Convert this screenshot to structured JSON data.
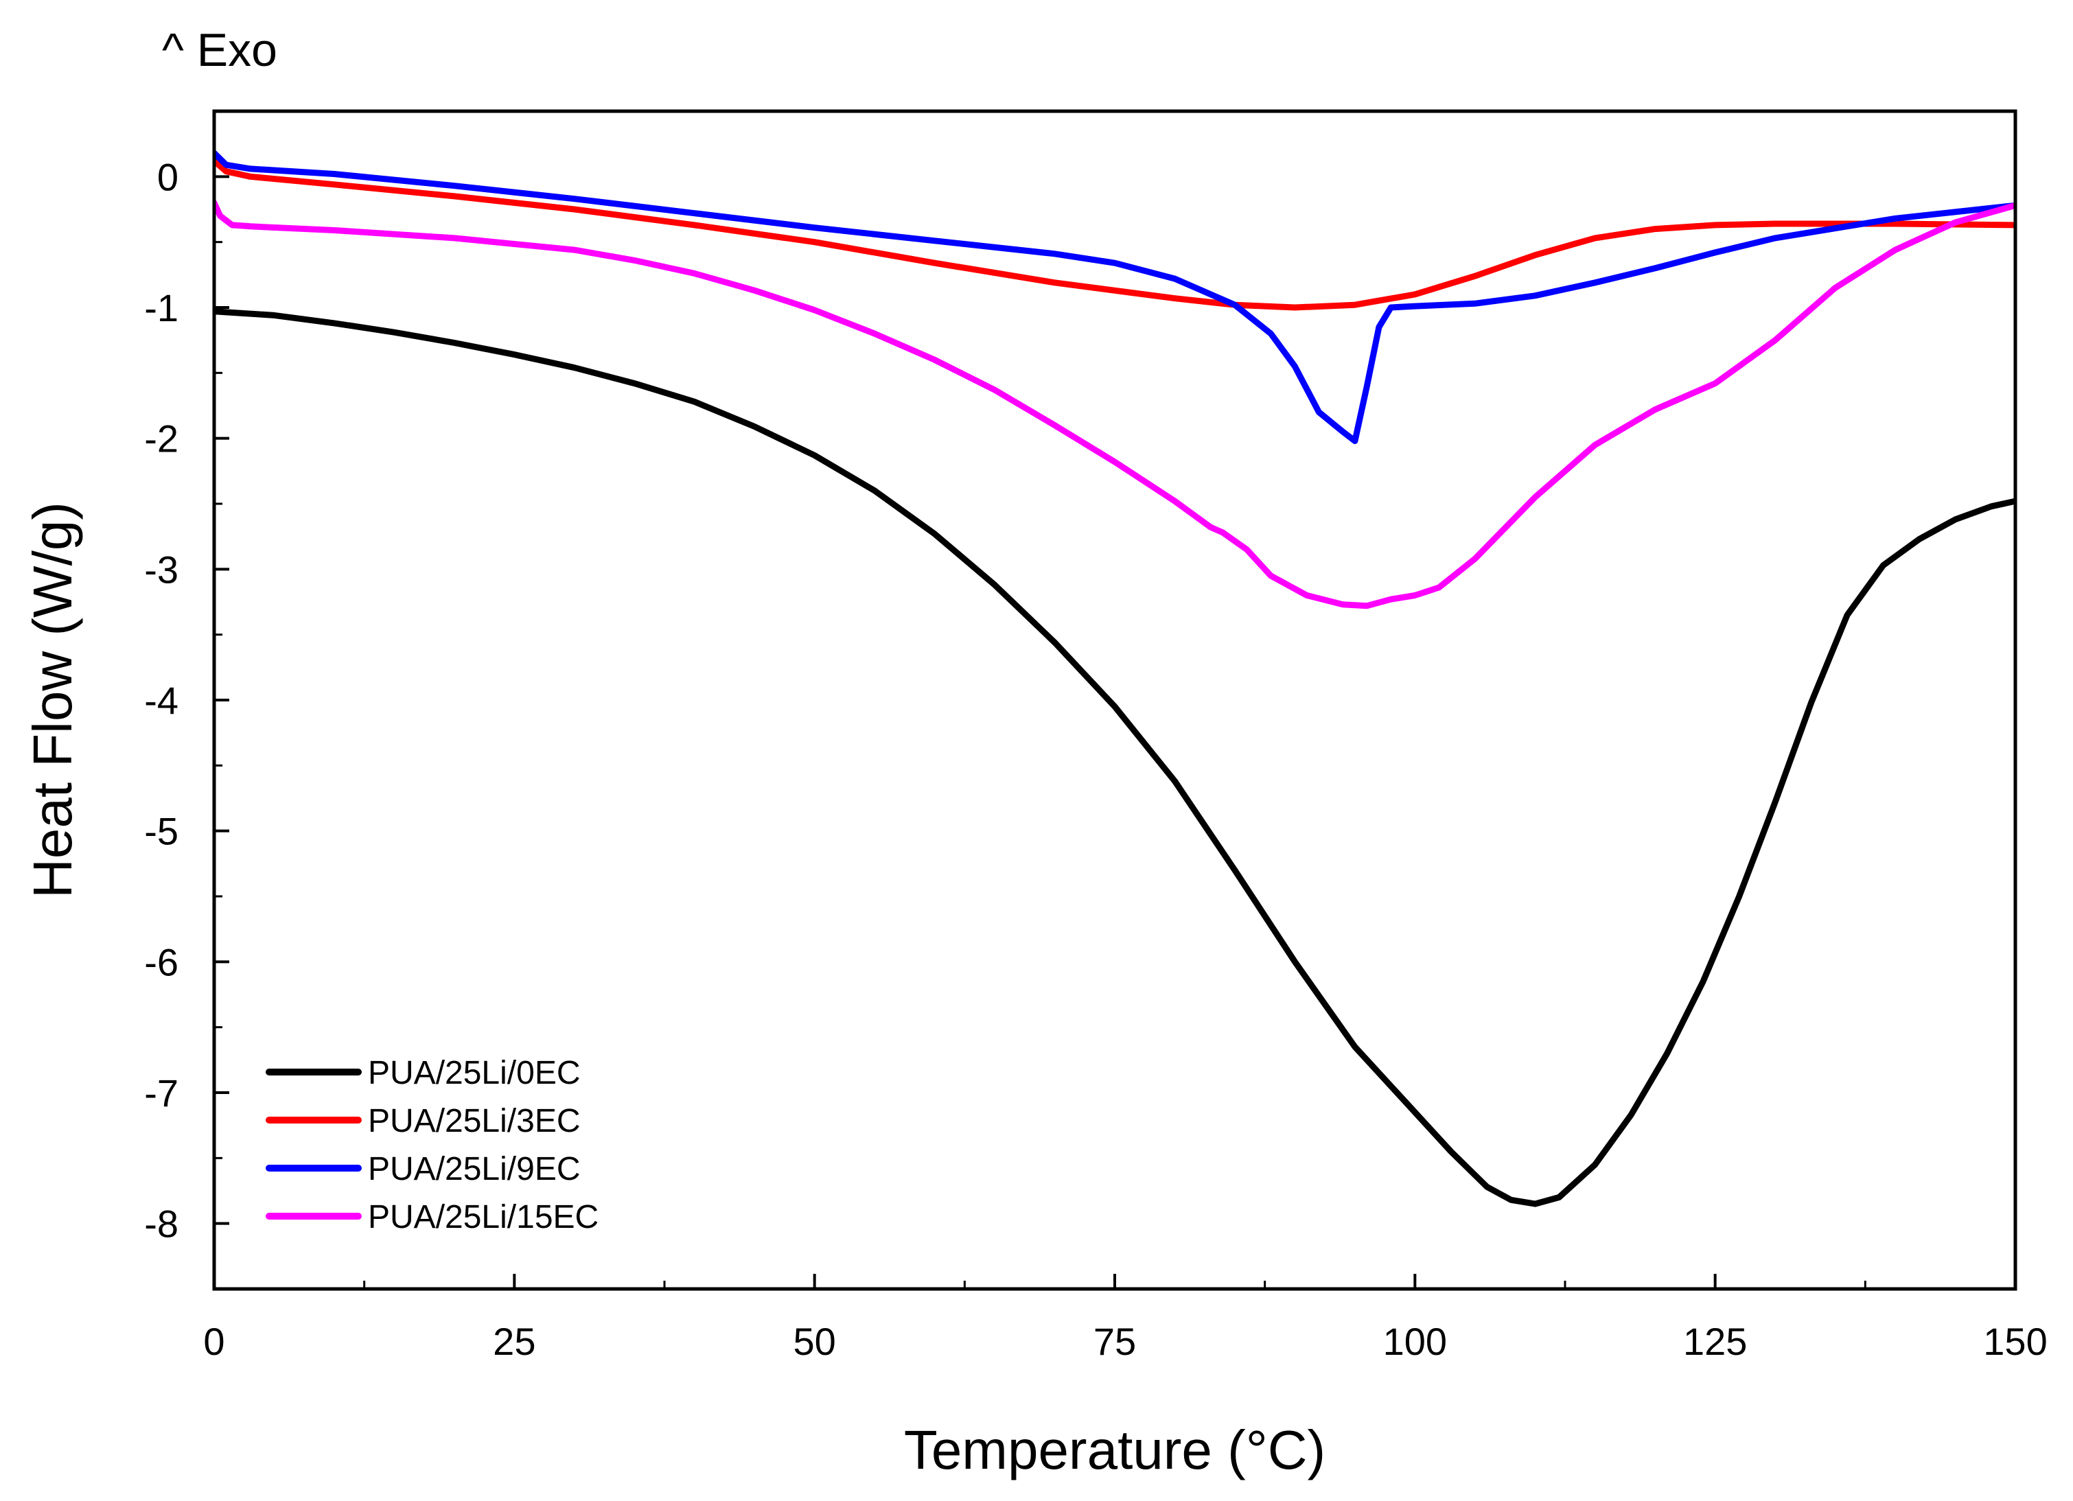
{
  "chart_data": {
    "type": "line",
    "annotation": "^ Exo",
    "xlabel": "Temperature (°C)",
    "ylabel": "Heat Flow (W/g)",
    "xlim": [
      0,
      150
    ],
    "ylim": [
      -8.5,
      0.5
    ],
    "xticks": [
      0,
      25,
      50,
      75,
      100,
      125,
      150
    ],
    "yticks": [
      0,
      -1,
      -2,
      -3,
      -4,
      -5,
      -6,
      -7,
      -8
    ],
    "legend_position": "bottom-left",
    "series": [
      {
        "name": "PUA/25Li/0EC",
        "color": "#000000",
        "x": [
          0,
          5,
          10,
          15,
          20,
          25,
          30,
          35,
          40,
          45,
          50,
          55,
          60,
          65,
          70,
          75,
          80,
          85,
          90,
          95,
          100,
          103,
          106,
          108,
          110,
          112,
          115,
          118,
          121,
          124,
          127,
          130,
          133,
          136,
          139,
          142,
          145,
          148,
          150
        ],
        "y": [
          -1.03,
          -1.06,
          -1.12,
          -1.19,
          -1.27,
          -1.36,
          -1.46,
          -1.58,
          -1.72,
          -1.91,
          -2.13,
          -2.4,
          -2.73,
          -3.12,
          -3.56,
          -4.05,
          -4.62,
          -5.3,
          -6.0,
          -6.65,
          -7.15,
          -7.45,
          -7.72,
          -7.82,
          -7.85,
          -7.8,
          -7.55,
          -7.17,
          -6.7,
          -6.15,
          -5.5,
          -4.78,
          -4.02,
          -3.35,
          -2.97,
          -2.77,
          -2.62,
          -2.52,
          -2.48
        ]
      },
      {
        "name": "PUA/25Li/3EC",
        "color": "#ff0000",
        "x": [
          0,
          1,
          3,
          10,
          20,
          30,
          40,
          50,
          60,
          70,
          80,
          85,
          90,
          95,
          100,
          105,
          110,
          115,
          120,
          125,
          130,
          140,
          150
        ],
        "y": [
          0.12,
          0.04,
          0.0,
          -0.06,
          -0.15,
          -0.25,
          -0.37,
          -0.5,
          -0.66,
          -0.81,
          -0.93,
          -0.98,
          -1.0,
          -0.98,
          -0.9,
          -0.76,
          -0.6,
          -0.47,
          -0.4,
          -0.37,
          -0.36,
          -0.36,
          -0.37
        ]
      },
      {
        "name": "PUA/25Li/9EC",
        "color": "#0000ff",
        "x": [
          0,
          1,
          3,
          10,
          20,
          30,
          40,
          50,
          60,
          70,
          75,
          80,
          85,
          88,
          90,
          92,
          94,
          95,
          96,
          97,
          98,
          100,
          105,
          110,
          115,
          120,
          125,
          130,
          140,
          150
        ],
        "y": [
          0.18,
          0.09,
          0.06,
          0.02,
          -0.07,
          -0.17,
          -0.28,
          -0.39,
          -0.49,
          -0.59,
          -0.66,
          -0.78,
          -0.98,
          -1.2,
          -1.45,
          -1.8,
          -1.95,
          -2.02,
          -1.6,
          -1.15,
          -1.0,
          -0.99,
          -0.97,
          -0.91,
          -0.81,
          -0.7,
          -0.58,
          -0.47,
          -0.32,
          -0.22
        ]
      },
      {
        "name": "PUA/25Li/15EC",
        "color": "#ff00ff",
        "x": [
          0,
          0.5,
          1.5,
          3,
          10,
          20,
          30,
          35,
          40,
          45,
          50,
          55,
          60,
          65,
          70,
          75,
          80,
          83,
          84,
          86,
          88,
          91,
          94,
          96,
          98,
          100,
          102,
          105,
          110,
          115,
          120,
          125,
          130,
          135,
          140,
          145,
          150
        ],
        "y": [
          -0.2,
          -0.3,
          -0.37,
          -0.38,
          -0.41,
          -0.47,
          -0.56,
          -0.64,
          -0.74,
          -0.87,
          -1.02,
          -1.2,
          -1.4,
          -1.63,
          -1.9,
          -2.18,
          -2.48,
          -2.68,
          -2.72,
          -2.85,
          -3.05,
          -3.2,
          -3.27,
          -3.28,
          -3.23,
          -3.2,
          -3.14,
          -2.92,
          -2.45,
          -2.05,
          -1.78,
          -1.58,
          -1.25,
          -0.85,
          -0.56,
          -0.35,
          -0.22
        ]
      }
    ]
  }
}
